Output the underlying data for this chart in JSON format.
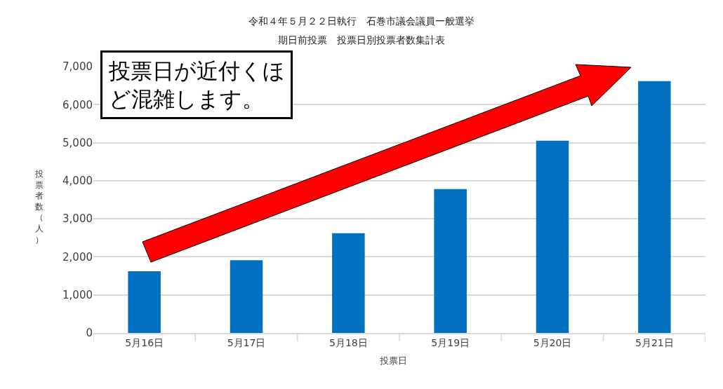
{
  "chart_data": {
    "type": "bar",
    "title": "令和４年５月２２日執行　石巻市議会議員一般選挙",
    "subtitle": "期日前投票　投票日別投票者数集計表",
    "xlabel": "投票日",
    "ylabel": "投票者数（人）",
    "categories": [
      "5月16日",
      "5月17日",
      "5月18日",
      "5月19日",
      "5月20日",
      "5月21日"
    ],
    "values": [
      1620,
      1910,
      2620,
      3780,
      5050,
      6620
    ],
    "color": "#0070c0",
    "ylim": [
      0,
      7000
    ],
    "yticks": [
      {
        "value": 0,
        "label": "0"
      },
      {
        "value": 1000,
        "label": "1,000"
      },
      {
        "value": 2000,
        "label": "2,000"
      },
      {
        "value": 3000,
        "label": "3,000"
      },
      {
        "value": 4000,
        "label": "4,000"
      },
      {
        "value": 5000,
        "label": "5,000"
      },
      {
        "value": 6000,
        "label": "6,000"
      },
      {
        "value": 7000,
        "label": "7,000"
      }
    ],
    "grid": "y",
    "annotations": [
      "投票日が近付くほど混雑します。"
    ]
  }
}
